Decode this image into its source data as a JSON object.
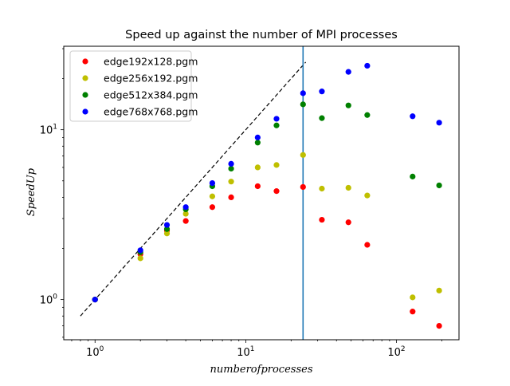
{
  "chart_data": {
    "type": "scatter",
    "title": "Speed up against the number of MPI processes",
    "xlabel": "numberofprocesses",
    "ylabel": "SpeedUp",
    "xscale": "log",
    "yscale": "log",
    "xlim": [
      0.62,
      260
    ],
    "ylim": [
      0.58,
      31
    ],
    "grid": false,
    "legend_placement": "top-left",
    "x_ticks": [
      {
        "value": 1,
        "base": "10",
        "exp": "0"
      },
      {
        "value": 10,
        "base": "10",
        "exp": "1"
      },
      {
        "value": 100,
        "base": "10",
        "exp": "2"
      }
    ],
    "y_ticks": [
      {
        "value": 1,
        "base": "10",
        "exp": "0"
      },
      {
        "value": 10,
        "base": "10",
        "exp": "1"
      }
    ],
    "ideal_line": {
      "x": [
        0.8,
        25
      ],
      "y": [
        0.8,
        25
      ],
      "color": "#000000",
      "style": "dashed"
    },
    "vertical_line": {
      "x": 24,
      "color": "#1f77b4"
    },
    "series": [
      {
        "name": "edge192x128.pgm",
        "color": "#ff0000",
        "x": [
          1,
          2,
          3,
          4,
          6,
          8,
          12,
          16,
          24,
          32,
          48,
          64,
          128,
          192
        ],
        "y": [
          1.0,
          1.85,
          2.55,
          2.9,
          3.5,
          4.0,
          4.65,
          4.35,
          4.6,
          2.95,
          2.85,
          2.1,
          0.85,
          0.7
        ]
      },
      {
        "name": "edge256x192.pgm",
        "color": "#bfbf00",
        "x": [
          1,
          2,
          3,
          4,
          6,
          8,
          12,
          16,
          24,
          32,
          48,
          64,
          128,
          192
        ],
        "y": [
          1.0,
          1.75,
          2.45,
          3.2,
          4.05,
          4.95,
          6.0,
          6.2,
          7.1,
          4.5,
          4.55,
          4.1,
          1.03,
          1.13
        ]
      },
      {
        "name": "edge512x384.pgm",
        "color": "#008000",
        "x": [
          1,
          2,
          3,
          4,
          6,
          8,
          12,
          16,
          24,
          32,
          48,
          64,
          128,
          192
        ],
        "y": [
          1.0,
          1.9,
          2.6,
          3.4,
          4.65,
          5.9,
          8.4,
          10.6,
          14.1,
          11.7,
          13.9,
          12.2,
          5.3,
          4.7
        ]
      },
      {
        "name": "edge768x768.pgm",
        "color": "#0000ff",
        "x": [
          1,
          2,
          3,
          4,
          6,
          8,
          12,
          16,
          24,
          32,
          48,
          64,
          128,
          192
        ],
        "y": [
          1.0,
          1.95,
          2.75,
          3.5,
          4.85,
          6.3,
          9.0,
          11.6,
          16.4,
          16.8,
          21.9,
          23.8,
          12.0,
          11.0
        ]
      }
    ]
  }
}
